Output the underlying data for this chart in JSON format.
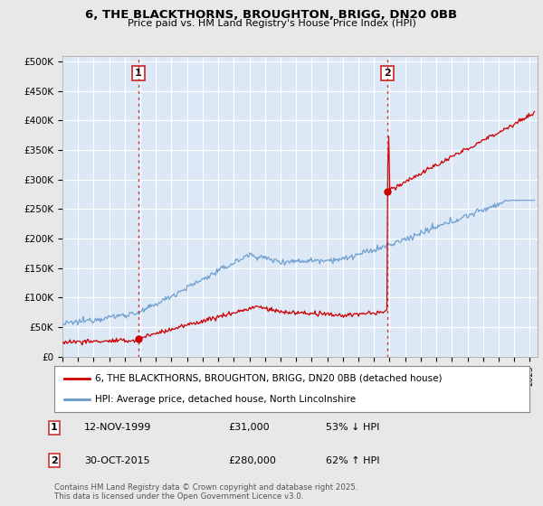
{
  "title": "6, THE BLACKTHORNS, BROUGHTON, BRIGG, DN20 0BB",
  "subtitle": "Price paid vs. HM Land Registry's House Price Index (HPI)",
  "background_color": "#e8e8e8",
  "plot_bg_color": "#dce8f5",
  "y_ticks": [
    0,
    50000,
    100000,
    150000,
    200000,
    250000,
    300000,
    350000,
    400000,
    450000,
    500000
  ],
  "y_tick_labels": [
    "£0",
    "£50K",
    "£100K",
    "£150K",
    "£200K",
    "£250K",
    "£300K",
    "£350K",
    "£400K",
    "£450K",
    "£500K"
  ],
  "ylim": [
    0,
    510000
  ],
  "xlim_start": 1995.0,
  "xlim_end": 2025.5,
  "sale1_date": 1999.87,
  "sale1_price": 31000,
  "sale1_label": "1",
  "sale2_date": 2015.83,
  "sale2_price": 280000,
  "sale2_label": "2",
  "legend_line1": "6, THE BLACKTHORNS, BROUGHTON, BRIGG, DN20 0BB (detached house)",
  "legend_line2": "HPI: Average price, detached house, North Lincolnshire",
  "annotation1_date": "12-NOV-1999",
  "annotation1_price": "£31,000",
  "annotation1_hpi": "53% ↓ HPI",
  "annotation2_date": "30-OCT-2015",
  "annotation2_price": "£280,000",
  "annotation2_hpi": "62% ↑ HPI",
  "copyright_text": "Contains HM Land Registry data © Crown copyright and database right 2025.\nThis data is licensed under the Open Government Licence v3.0.",
  "red_color": "#cc0000",
  "blue_color": "#6699cc",
  "vline_color": "#cc3333",
  "grid_color": "#c0c8d8",
  "grid_color2": "#ffffff"
}
